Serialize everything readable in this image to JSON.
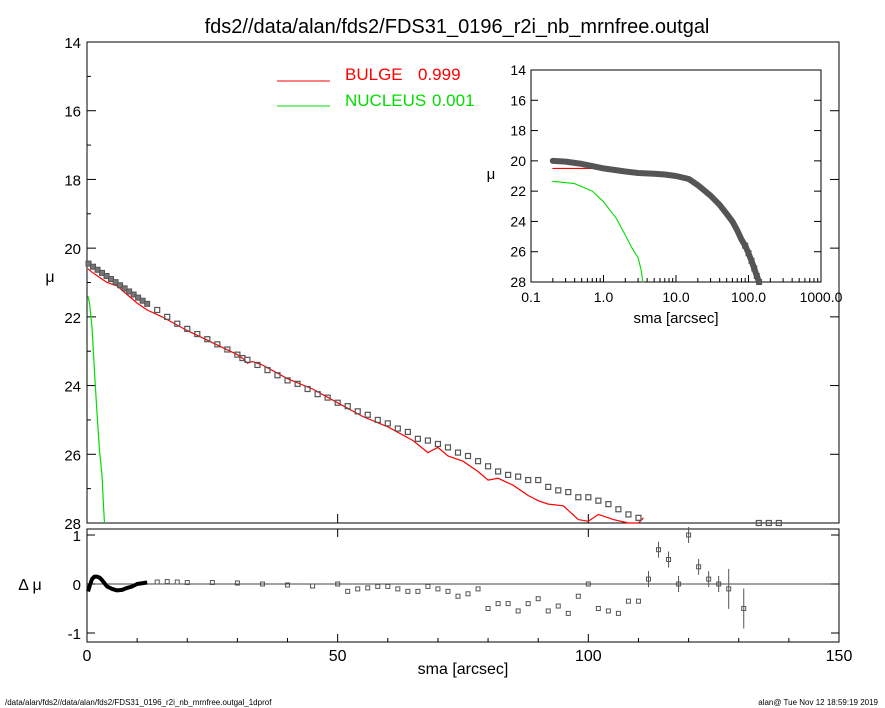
{
  "title": "fds2//data/alan/fds2/FDS31_0196_r2i_nb_mrnfree.outgal",
  "footer_left": "/data/alan/fds2//data/alan/fds2/FDS31_0196_r2i_nb_mrnfree.outgal_1dprof",
  "footer_right": "alan@  Tue Nov 12 18:59:19 2019",
  "colors": {
    "bulge": "#ff0000",
    "nucleus": "#00dd00",
    "data": "#555555",
    "axis": "#000000"
  },
  "chart_data": [
    {
      "type": "scatter",
      "panel": "main",
      "xlabel": "sma [arcsec]",
      "ylabel": "μ",
      "xlim": [
        0,
        150
      ],
      "ylim": [
        28,
        14
      ],
      "xticks": [
        "0",
        "50",
        "100",
        "150"
      ],
      "yticks": [
        "14",
        "16",
        "18",
        "20",
        "22",
        "24",
        "26",
        "28"
      ],
      "legend": [
        {
          "label": "BULGE",
          "value": "0.999",
          "color": "#ff0000"
        },
        {
          "label": "NUCLEUS",
          "value": "0.001",
          "color": "#00dd00"
        }
      ],
      "series": [
        {
          "name": "BULGE",
          "color": "#ff0000",
          "x": [
            0.2,
            1,
            2,
            3,
            4,
            5,
            6,
            8,
            10,
            12,
            15,
            20,
            25,
            30,
            31,
            32,
            33,
            35,
            40,
            45,
            50,
            55,
            60,
            65,
            68,
            70,
            72,
            75,
            78,
            80,
            82,
            85,
            88,
            90,
            92,
            95,
            98,
            100,
            102,
            105,
            108,
            110,
            111
          ],
          "y": [
            20.6,
            20.7,
            20.8,
            20.9,
            21.0,
            21.05,
            21.1,
            21.35,
            21.6,
            21.8,
            22.0,
            22.4,
            22.75,
            23.1,
            23.2,
            23.35,
            23.3,
            23.4,
            23.8,
            24.1,
            24.5,
            24.9,
            25.2,
            25.6,
            25.95,
            25.8,
            26.05,
            26.2,
            26.5,
            26.75,
            26.7,
            26.9,
            27.2,
            27.35,
            27.45,
            27.5,
            27.9,
            27.95,
            27.75,
            27.9,
            28.0,
            28.0,
            27.85
          ]
        },
        {
          "name": "NUCLEUS",
          "color": "#00dd00",
          "x": [
            0.2,
            0.5,
            1.0,
            1.5,
            2.0,
            2.5,
            3.0,
            3.3,
            3.5
          ],
          "y": [
            21.4,
            21.6,
            22.3,
            23.6,
            24.8,
            25.9,
            26.6,
            27.5,
            28.0
          ],
          "clip_hidden_points": "curve continues below 28 (off-panel)"
        },
        {
          "name": "",
          "color": "#555555",
          "marker": "square",
          "x": [
            14,
            16,
            18,
            20,
            22,
            24,
            26,
            28,
            30,
            31,
            32,
            34,
            36,
            38,
            40,
            42,
            44,
            46,
            48,
            50,
            52,
            54,
            56,
            58,
            60,
            62,
            64,
            66,
            68,
            70,
            72,
            74,
            76,
            78,
            80,
            82,
            84,
            86,
            88,
            90,
            92,
            94,
            96,
            98,
            100,
            102,
            104,
            106,
            108,
            110,
            134,
            136,
            138
          ],
          "y": [
            21.8,
            22.0,
            22.2,
            22.35,
            22.5,
            22.65,
            22.8,
            22.95,
            23.1,
            23.2,
            23.25,
            23.4,
            23.55,
            23.7,
            23.85,
            23.95,
            24.1,
            24.25,
            24.35,
            24.5,
            24.6,
            24.75,
            24.85,
            25.0,
            25.1,
            25.25,
            25.35,
            25.55,
            25.6,
            25.7,
            25.8,
            25.95,
            26.05,
            26.2,
            26.35,
            26.5,
            26.6,
            26.65,
            26.75,
            26.75,
            26.95,
            27.05,
            27.1,
            27.25,
            27.25,
            27.35,
            27.45,
            27.6,
            27.75,
            27.85,
            28.0,
            28.0,
            28.0
          ]
        }
      ]
    },
    {
      "type": "line",
      "panel": "inset",
      "xlabel": "sma [arcsec]",
      "ylabel": "μ",
      "xscale": "log",
      "xlim": [
        0.1,
        1000
      ],
      "ylim": [
        28,
        14
      ],
      "xticks": [
        "0.1",
        "1.0",
        "10.0",
        "100.0",
        "1000.0"
      ],
      "yticks": [
        "14",
        "16",
        "18",
        "20",
        "22",
        "24",
        "26",
        "28"
      ],
      "series": [
        {
          "name": "BULGE",
          "color": "#ff0000",
          "x": [
            0.2,
            0.5,
            1.0
          ],
          "y": [
            20.5,
            20.5,
            20.5
          ]
        },
        {
          "name": "NUCLEUS",
          "color": "#00dd00",
          "x": [
            0.2,
            0.4,
            0.7,
            1.0,
            1.5,
            2.0,
            2.5,
            3.0,
            3.3,
            3.5
          ],
          "y": [
            21.35,
            21.5,
            22.0,
            22.7,
            23.8,
            24.9,
            25.8,
            26.4,
            27.2,
            28.0
          ]
        },
        {
          "name": "",
          "color": "#555555",
          "x": [
            0.2,
            0.3,
            0.5,
            0.8,
            1.0,
            2.0,
            3.0,
            5.0,
            7.0,
            10,
            15,
            20,
            30,
            40,
            50,
            60,
            70,
            80,
            90,
            100,
            110,
            120,
            130,
            140
          ],
          "y": [
            20.0,
            20.05,
            20.2,
            20.4,
            20.5,
            20.7,
            20.8,
            20.85,
            20.9,
            21.0,
            21.2,
            21.6,
            22.3,
            22.9,
            23.5,
            24.0,
            24.6,
            25.2,
            25.6,
            26.1,
            26.6,
            27.1,
            27.6,
            28.0
          ]
        }
      ]
    },
    {
      "type": "scatter",
      "panel": "residual",
      "xlabel": "sma [arcsec]",
      "ylabel": "Δ μ",
      "xlim": [
        0,
        150
      ],
      "ylim": [
        -1.1,
        1.1
      ],
      "xticks": [
        "0",
        "50",
        "100",
        "150"
      ],
      "yticks": [
        "1",
        "0",
        "-1"
      ],
      "series": [
        {
          "name": "",
          "color": "#555555",
          "x": [
            0.2,
            0.5,
            1,
            1.5,
            2,
            2.5,
            3,
            4,
            5,
            6,
            7,
            8,
            9,
            10,
            12,
            14,
            16,
            18,
            20,
            25,
            30,
            35,
            40,
            45,
            50,
            52,
            54,
            56,
            58,
            60,
            62,
            64,
            66,
            68,
            70,
            72,
            74,
            76,
            78,
            80,
            82,
            84,
            86,
            88,
            90,
            92,
            94,
            96,
            98,
            100,
            102,
            104,
            106,
            108,
            110,
            112,
            114,
            116,
            118,
            120,
            122,
            124,
            126,
            128,
            131
          ],
          "y": [
            -0.15,
            -0.05,
            0.1,
            0.15,
            0.15,
            0.13,
            0.08,
            -0.05,
            -0.1,
            -0.13,
            -0.12,
            -0.08,
            -0.05,
            0.0,
            0.03,
            0.04,
            0.05,
            0.04,
            0.03,
            0.03,
            0.02,
            0.0,
            -0.02,
            -0.04,
            0.0,
            -0.15,
            -0.1,
            -0.08,
            -0.05,
            -0.05,
            -0.1,
            -0.15,
            -0.15,
            -0.05,
            -0.1,
            -0.15,
            -0.25,
            -0.2,
            -0.1,
            -0.5,
            -0.4,
            -0.4,
            -0.55,
            -0.4,
            -0.3,
            -0.55,
            -0.45,
            -0.6,
            -0.25,
            0.0,
            -0.5,
            -0.55,
            -0.6,
            -0.35,
            -0.35,
            0.1,
            0.7,
            0.5,
            0.0,
            1.0,
            0.35,
            0.1,
            0.0,
            -0.1,
            -0.5
          ]
        }
      ]
    }
  ]
}
